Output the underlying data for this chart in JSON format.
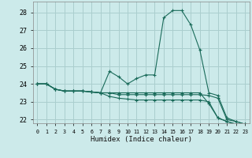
{
  "xlabel": "Humidex (Indice chaleur)",
  "bg_color": "#cceaea",
  "grid_color": "#aacece",
  "line_color": "#1a6b5a",
  "xlim": [
    -0.5,
    23.5
  ],
  "ylim": [
    21.8,
    28.6
  ],
  "yticks": [
    22,
    23,
    24,
    25,
    26,
    27,
    28
  ],
  "xticks": [
    0,
    1,
    2,
    3,
    4,
    5,
    6,
    7,
    8,
    9,
    10,
    11,
    12,
    13,
    14,
    15,
    16,
    17,
    18,
    19,
    20,
    21,
    22,
    23
  ],
  "series": [
    [
      24.0,
      24.0,
      23.7,
      23.6,
      23.6,
      23.6,
      23.55,
      23.5,
      24.7,
      24.4,
      24.0,
      24.3,
      24.5,
      24.5,
      27.7,
      28.1,
      28.1,
      27.3,
      25.9,
      23.5,
      23.35,
      22.1,
      21.9,
      21.75
    ],
    [
      24.0,
      24.0,
      23.7,
      23.6,
      23.6,
      23.6,
      23.55,
      23.5,
      23.5,
      23.4,
      23.4,
      23.4,
      23.4,
      23.4,
      23.4,
      23.4,
      23.4,
      23.4,
      23.4,
      23.35,
      23.2,
      22.0,
      21.9,
      21.75
    ],
    [
      24.0,
      24.0,
      23.7,
      23.6,
      23.6,
      23.6,
      23.55,
      23.5,
      23.5,
      23.5,
      23.5,
      23.5,
      23.5,
      23.5,
      23.5,
      23.5,
      23.5,
      23.5,
      23.5,
      22.9,
      22.1,
      21.9,
      21.75,
      21.75
    ],
    [
      24.0,
      24.0,
      23.7,
      23.6,
      23.6,
      23.6,
      23.55,
      23.5,
      23.3,
      23.2,
      23.15,
      23.1,
      23.1,
      23.1,
      23.1,
      23.1,
      23.1,
      23.1,
      23.1,
      23.0,
      22.1,
      21.9,
      21.75,
      21.75
    ]
  ]
}
